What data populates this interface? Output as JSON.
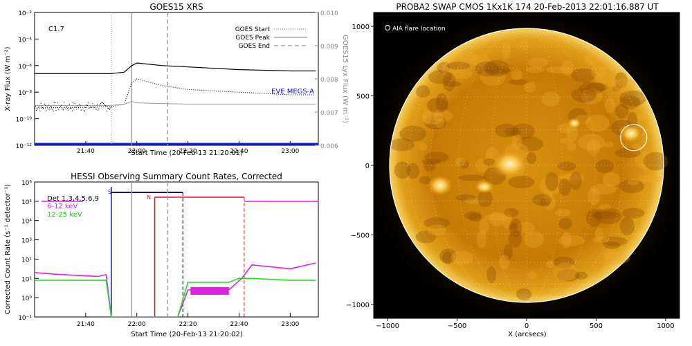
{
  "chart_data": [
    {
      "type": "line",
      "title": "GOES15 XRS",
      "annotation": "C1.7",
      "xlabel": "Start Time (20-Feb-13 21:20:01)",
      "ylabel": "X-ray Flux (W m⁻²)",
      "ylabel_right": "GOES15 Lyx Flux (W m⁻²)",
      "x_ticks": [
        "21:40",
        "22:00",
        "22:20",
        "22:40",
        "23:00"
      ],
      "y_ticks": [
        "10⁻²",
        "10⁻⁴",
        "10⁻⁶",
        "10⁻⁸",
        "10⁻¹⁰",
        "10⁻¹²"
      ],
      "y_log_range": [
        -12,
        -2
      ],
      "y_right_ticks": [
        "0.010",
        "0.009",
        "0.008",
        "0.007",
        "0.006"
      ],
      "y_right_range": [
        0.006,
        0.01
      ],
      "legend": [
        {
          "label": "GOES Start",
          "style": "dotted"
        },
        {
          "label": "GOES Peak",
          "style": "solid"
        },
        {
          "label": "GOES End",
          "style": "dashed"
        }
      ],
      "series_label": "EVE MEGS-A",
      "colors": {
        "series_label": "#1010c8",
        "baseline": "#1020e0"
      },
      "event_times": {
        "start": "21:50",
        "peak": "21:58",
        "end": "22:12"
      },
      "series": [
        {
          "style": "solid-black",
          "x": [
            "21:20",
            "21:50",
            "21:55",
            "21:58",
            "22:00",
            "22:10",
            "22:20",
            "22:40",
            "23:00",
            "23:10"
          ],
          "log_flux": [
            -6.6,
            -6.6,
            -6.5,
            -6.0,
            -5.8,
            -6.0,
            -6.1,
            -6.3,
            -6.4,
            -6.4
          ]
        },
        {
          "style": "dotted-black",
          "x": [
            "21:20",
            "21:50",
            "21:55",
            "21:58",
            "22:00",
            "22:10",
            "22:20",
            "22:40",
            "23:00",
            "23:10"
          ],
          "log_flux": [
            -9.2,
            -9.1,
            -8.9,
            -7.3,
            -7.0,
            -7.5,
            -7.8,
            -8.0,
            -8.2,
            -8.2
          ]
        },
        {
          "style": "solid-gray",
          "x": [
            "21:20",
            "21:50",
            "21:55",
            "21:58",
            "22:00",
            "22:20",
            "22:40",
            "23:00",
            "23:10"
          ],
          "log_flux": [
            -9.0,
            -9.0,
            -8.9,
            -8.7,
            -8.8,
            -8.9,
            -8.9,
            -8.9,
            -8.9
          ]
        }
      ]
    },
    {
      "type": "line",
      "title": "HESSI Observing Summary Count Rates, Corrected",
      "xlabel": "Start Time (20-Feb-13 21:20:02)",
      "ylabel": "Corrected Count Rate (s⁻¹ detector⁻¹)",
      "x_ticks": [
        "21:40",
        "22:00",
        "22:20",
        "22:40",
        "23:00"
      ],
      "y_ticks": [
        "10⁶",
        "10⁵",
        "10⁴",
        "10³",
        "10²",
        "10¹",
        "10⁰",
        "10⁻¹"
      ],
      "y_log_range": [
        -1,
        6
      ],
      "legend_title": "Det 1,3,4,5,6,9",
      "legend": [
        {
          "label": "6-12 keV",
          "color": "#e020e0"
        },
        {
          "label": "12-25 keV",
          "color": "#20e020"
        }
      ],
      "markers": [
        {
          "label": "S",
          "color": "#1010a0"
        },
        {
          "label": "N",
          "color": "#e01010"
        }
      ],
      "series": [
        {
          "name": "6-12 keV",
          "x": [
            "21:20",
            "21:30",
            "21:45",
            "21:48",
            "21:50",
            "22:16",
            "22:20",
            "22:30",
            "22:36",
            "22:41",
            "22:45",
            "23:00",
            "23:10"
          ],
          "log_rate": [
            1.3,
            1.2,
            1.1,
            1.2,
            -1,
            -1,
            0.4,
            0.4,
            0.4,
            1.0,
            1.7,
            1.5,
            1.8
          ]
        },
        {
          "name": "12-25 keV",
          "x": [
            "21:20",
            "21:48",
            "21:50",
            "22:16",
            "22:20",
            "22:36",
            "22:40",
            "22:45",
            "23:00",
            "23:10"
          ],
          "log_rate": [
            0.9,
            0.9,
            -1,
            -1,
            0.8,
            0.8,
            1.0,
            1.0,
            0.9,
            0.9
          ]
        }
      ]
    },
    {
      "type": "heatmap",
      "title": "PROBA2 SWAP CMOS 1Kx1K 174 20-Feb-2013 22:01:16.887 UT",
      "legend_label": "AIA flare location",
      "xlabel": "X (arcsecs)",
      "x_ticks": [
        "−1000",
        "−500",
        "0",
        "500",
        "1000"
      ],
      "y_ticks": [
        "1000",
        "500",
        "0",
        "−500",
        "−1000"
      ],
      "x_range": [
        -1100,
        1100
      ],
      "y_range": [
        -1100,
        1100
      ],
      "flare_location": {
        "x": 770,
        "y": 200
      }
    }
  ]
}
